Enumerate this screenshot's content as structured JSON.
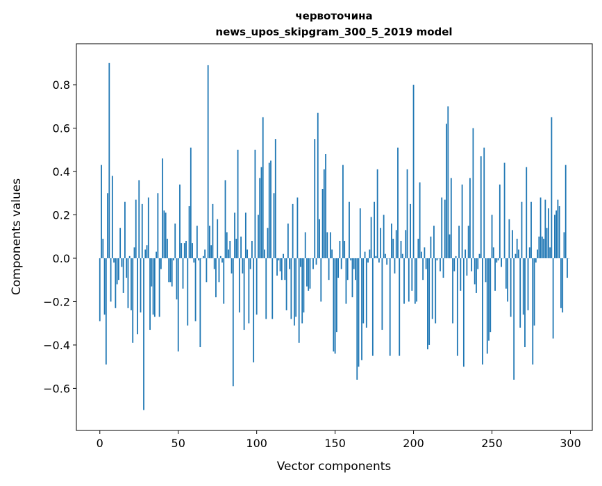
{
  "chart_data": {
    "type": "bar",
    "title": "червоточина",
    "subtitle": "news_upos_skipgram_300_5_2019 model",
    "xlabel": "Vector components",
    "ylabel": "Components values",
    "xlim": [
      -14.95,
      313.95
    ],
    "ylim": [
      -0.794,
      0.989
    ],
    "xticks": [
      0,
      50,
      100,
      150,
      200,
      250,
      300
    ],
    "yticks": [
      -0.6,
      -0.4,
      -0.2,
      0.0,
      0.2,
      0.4,
      0.6,
      0.8
    ],
    "ytick_labels": [
      "−0.6",
      "−0.4",
      "−0.2",
      "0.0",
      "0.2",
      "0.4",
      "0.6",
      "0.8"
    ],
    "xtick_labels": [
      "0",
      "50",
      "100",
      "150",
      "200",
      "250",
      "300"
    ],
    "bar_color": "#1f77b4",
    "bar_width": 0.8,
    "grid": false,
    "values": [
      -0.29,
      0.43,
      0.09,
      -0.26,
      -0.49,
      0.3,
      0.9,
      -0.2,
      0.38,
      -0.02,
      -0.23,
      -0.12,
      -0.1,
      0.14,
      -0.04,
      -0.16,
      0.26,
      -0.09,
      -0.23,
      0.01,
      -0.24,
      -0.39,
      0.05,
      0.27,
      -0.35,
      0.36,
      -0.25,
      0.25,
      -0.7,
      0.04,
      0.06,
      0.28,
      -0.33,
      -0.13,
      -0.26,
      -0.27,
      0.03,
      0.3,
      -0.27,
      -0.05,
      0.46,
      0.22,
      0.21,
      0.09,
      -0.11,
      -0.11,
      -0.13,
      -0.01,
      0.16,
      -0.19,
      -0.43,
      0.34,
      0.07,
      -0.14,
      0.07,
      0.08,
      -0.31,
      0.24,
      0.51,
      0.07,
      -0.02,
      -0.29,
      0.15,
      -0.01,
      -0.41,
      0.0,
      0.01,
      0.04,
      -0.11,
      0.89,
      0.15,
      0.06,
      0.25,
      -0.05,
      -0.18,
      0.18,
      -0.11,
      0.01,
      -0.02,
      -0.21,
      0.36,
      0.12,
      0.04,
      0.08,
      -0.07,
      -0.59,
      0.21,
      0.09,
      0.5,
      -0.25,
      0.1,
      -0.07,
      -0.33,
      0.21,
      0.04,
      -0.3,
      -0.05,
      0.08,
      -0.48,
      0.5,
      -0.26,
      0.2,
      0.37,
      0.42,
      0.65,
      0.04,
      -0.28,
      0.14,
      0.44,
      0.45,
      -0.28,
      0.3,
      0.55,
      -0.08,
      -0.01,
      -0.06,
      -0.1,
      0.02,
      -0.1,
      -0.24,
      0.16,
      -0.05,
      -0.28,
      0.25,
      -0.31,
      -0.27,
      0.28,
      -0.39,
      -0.04,
      -0.3,
      -0.25,
      0.12,
      -0.13,
      -0.15,
      -0.14,
      0.0,
      -0.05,
      0.55,
      -0.03,
      0.67,
      0.18,
      -0.2,
      0.32,
      0.41,
      0.48,
      0.12,
      -0.1,
      0.12,
      0.04,
      -0.43,
      -0.44,
      -0.34,
      -0.09,
      0.08,
      -0.05,
      0.43,
      0.08,
      -0.21,
      -0.1,
      0.26,
      -0.01,
      -0.18,
      -0.05,
      -0.1,
      -0.56,
      -0.5,
      0.23,
      -0.47,
      -0.3,
      0.03,
      -0.32,
      -0.02,
      0.04,
      0.19,
      -0.45,
      0.26,
      0.01,
      0.41,
      -0.02,
      0.14,
      -0.33,
      0.2,
      0.02,
      -0.03,
      0.0,
      -0.45,
      0.16,
      0.09,
      -0.07,
      0.13,
      0.51,
      -0.45,
      0.08,
      0.02,
      -0.21,
      0.13,
      0.41,
      -0.2,
      0.25,
      -0.15,
      0.8,
      -0.21,
      -0.2,
      0.09,
      0.35,
      0.03,
      -0.1,
      0.05,
      -0.05,
      -0.42,
      -0.4,
      0.1,
      -0.28,
      0.15,
      -0.3,
      -0.01,
      0.0,
      -0.06,
      0.28,
      -0.09,
      0.27,
      0.62,
      0.7,
      0.11,
      0.37,
      -0.3,
      -0.06,
      0.01,
      -0.45,
      0.15,
      -0.15,
      0.34,
      -0.5,
      0.04,
      -0.08,
      0.15,
      0.37,
      -0.06,
      0.6,
      -0.12,
      -0.16,
      -0.05,
      0.02,
      0.47,
      -0.49,
      0.51,
      -0.11,
      -0.44,
      -0.38,
      -0.34,
      0.2,
      0.05,
      -0.15,
      -0.02,
      -0.01,
      0.34,
      -0.04,
      0.0,
      0.44,
      -0.14,
      -0.2,
      0.18,
      -0.27,
      0.13,
      -0.56,
      0.02,
      0.09,
      0.04,
      -0.32,
      0.26,
      -0.26,
      -0.41,
      0.42,
      -0.24,
      0.05,
      0.26,
      -0.49,
      -0.31,
      -0.02,
      0.04,
      0.1,
      0.28,
      0.1,
      0.09,
      0.27,
      0.14,
      0.23,
      0.05,
      0.65,
      -0.37,
      0.2,
      0.22,
      0.27,
      0.24,
      -0.23,
      -0.25,
      0.12,
      0.43,
      -0.09,
      0.0
    ]
  }
}
